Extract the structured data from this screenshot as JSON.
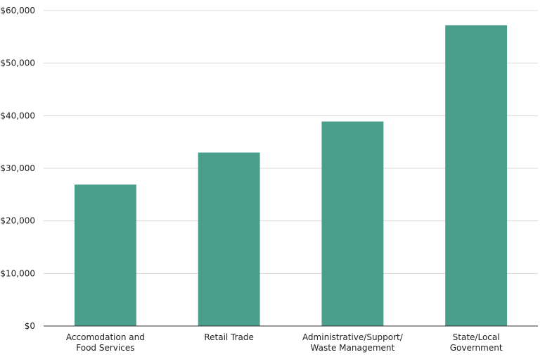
{
  "chart_data": {
    "type": "bar",
    "title": "",
    "xlabel": "",
    "ylabel": "",
    "categories": [
      [
        "Accomodation and",
        "Food Services"
      ],
      [
        "Retail Trade"
      ],
      [
        "Administrative/Support/",
        "Waste Management"
      ],
      [
        "State/Local",
        "Government"
      ]
    ],
    "values": [
      26900,
      33000,
      38900,
      57200
    ],
    "ylim": [
      0,
      60000
    ],
    "yticks": [
      0,
      10000,
      20000,
      30000,
      40000,
      50000,
      60000
    ],
    "ytick_labels": [
      "$0",
      "$10,000",
      "$20,000",
      "$30,000",
      "$40,000",
      "$50,000",
      "$60,000"
    ],
    "grid": true,
    "legend": "none",
    "bar_color": "#4c9e8c"
  }
}
